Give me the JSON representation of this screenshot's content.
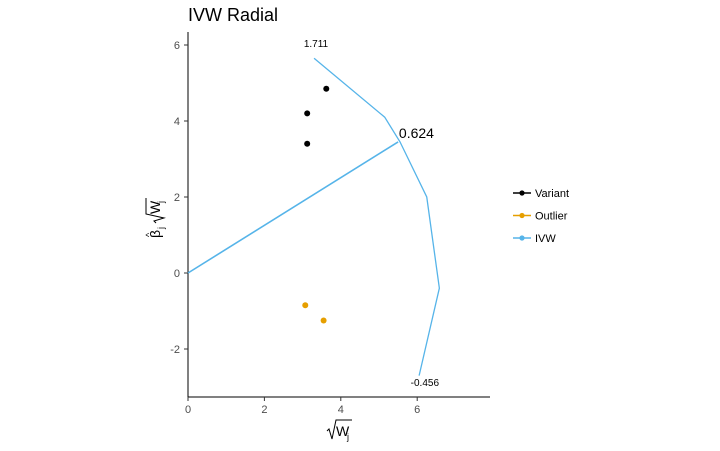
{
  "chart_data": {
    "type": "scatter",
    "title": "IVW Radial",
    "x_ticks": [
      "0",
      "2",
      "4",
      "6"
    ],
    "y_ticks": [
      "-2",
      "0",
      "2",
      "4",
      "6"
    ],
    "xlim": [
      0,
      8
    ],
    "ylim": [
      -3.3,
      6.3
    ],
    "series": [
      {
        "name": "Variant",
        "color": "#000000",
        "points": [
          {
            "x": 3.62,
            "y": 4.85
          },
          {
            "x": 3.12,
            "y": 4.2
          },
          {
            "x": 3.12,
            "y": 3.4
          }
        ]
      },
      {
        "name": "Outlier",
        "color": "#E69F00",
        "points": [
          {
            "x": 3.07,
            "y": -0.85
          },
          {
            "x": 3.55,
            "y": -1.25
          }
        ]
      }
    ],
    "ivw": {
      "name": "IVW",
      "color": "#56B4E9",
      "line": [
        {
          "x": 0,
          "y": 0
        },
        {
          "x": 5.5,
          "y": 3.45
        }
      ],
      "arc": [
        {
          "x": 3.3,
          "y": 5.65
        },
        {
          "x": 5.15,
          "y": 4.1
        },
        {
          "x": 5.55,
          "y": 3.45
        },
        {
          "x": 6.25,
          "y": 2.0
        },
        {
          "x": 6.58,
          "y": -0.4
        },
        {
          "x": 6.05,
          "y": -2.7
        }
      ]
    },
    "annotations": [
      {
        "text": "1.711",
        "x": 3.35,
        "y": 5.95,
        "size": "small"
      },
      {
        "text": "0.624",
        "x": 5.98,
        "y": 3.55,
        "size": "large"
      },
      {
        "text": "-0.456",
        "x": 6.2,
        "y": -2.97,
        "size": "small"
      }
    ],
    "legend": {
      "position": "right",
      "entries": [
        {
          "label": "Variant",
          "color": "#000000"
        },
        {
          "label": "Outlier",
          "color": "#E69F00"
        },
        {
          "label": "IVW",
          "color": "#56B4E9"
        }
      ]
    }
  }
}
